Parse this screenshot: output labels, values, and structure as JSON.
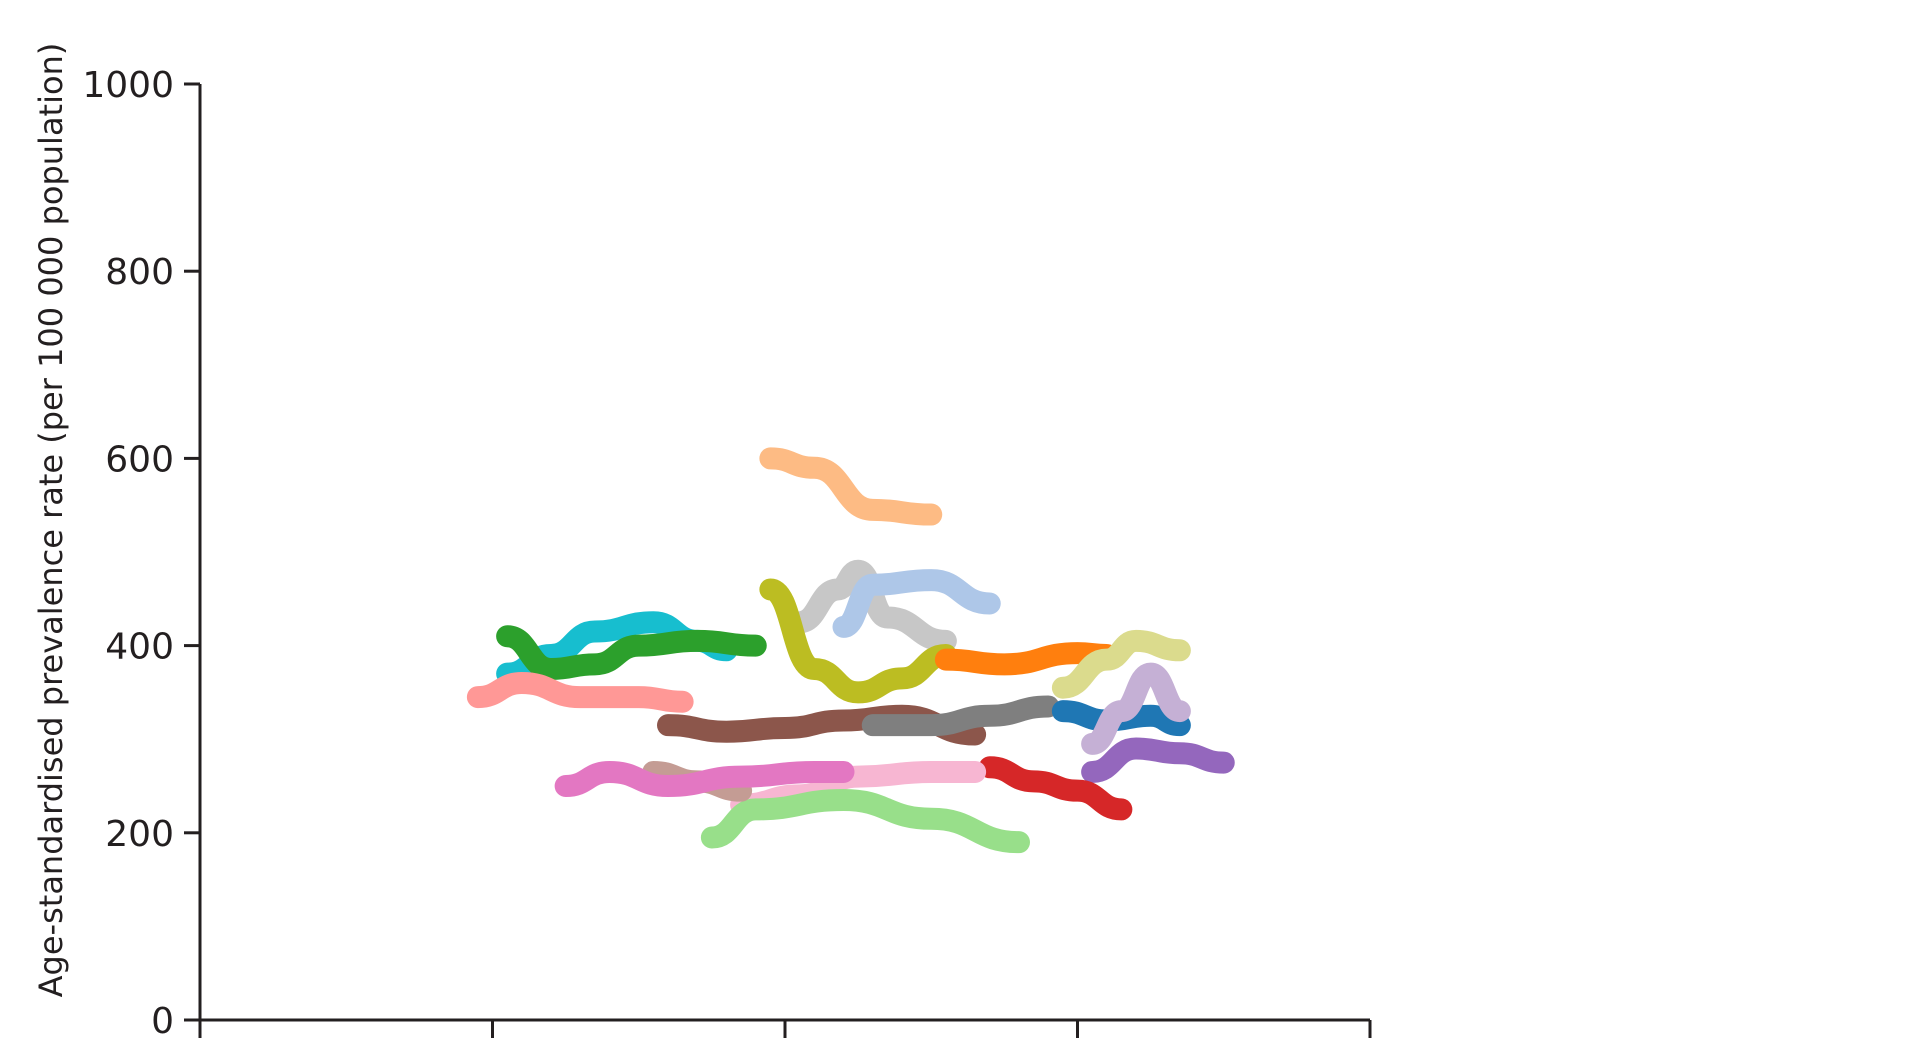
{
  "chart_data": {
    "type": "line",
    "title": "",
    "xlabel": "",
    "ylabel": "Age-standardised prevalence rate (per 100 000 population)",
    "ylim": [
      0,
      1000
    ],
    "yticks": [
      0,
      200,
      400,
      600,
      800,
      1000
    ],
    "ytick_labels": [
      "0",
      "200",
      "400",
      "600",
      "800",
      "1000"
    ],
    "xlim": [
      0,
      4
    ],
    "xticks": [
      0,
      1,
      2,
      3,
      4
    ],
    "grid": false,
    "legend": "none",
    "series": [
      {
        "color": "#fdbb84",
        "x": [
          1.95,
          2.1,
          2.3,
          2.5
        ],
        "y": [
          600,
          590,
          545,
          540
        ]
      },
      {
        "color": "#c7c7c7",
        "x": [
          2.05,
          2.18,
          2.25,
          2.35,
          2.55
        ],
        "y": [
          425,
          460,
          480,
          430,
          405
        ]
      },
      {
        "color": "#aec7e8",
        "x": [
          2.2,
          2.3,
          2.5,
          2.7
        ],
        "y": [
          420,
          465,
          470,
          445
        ]
      },
      {
        "color": "#bcbd22",
        "x": [
          1.95,
          2.1,
          2.25,
          2.4,
          2.55
        ],
        "y": [
          460,
          375,
          350,
          365,
          390
        ]
      },
      {
        "color": "#ff7f0e",
        "x": [
          2.55,
          2.75,
          3.0,
          3.1
        ],
        "y": [
          385,
          380,
          392,
          390
        ]
      },
      {
        "color": "#dbdb8d",
        "x": [
          2.95,
          3.1,
          3.2,
          3.35
        ],
        "y": [
          355,
          385,
          405,
          395
        ]
      },
      {
        "color": "#17becf",
        "x": [
          1.05,
          1.2,
          1.35,
          1.55,
          1.7,
          1.8
        ],
        "y": [
          370,
          390,
          415,
          425,
          405,
          395
        ]
      },
      {
        "color": "#2ca02c",
        "x": [
          1.05,
          1.2,
          1.35,
          1.5,
          1.7,
          1.9
        ],
        "y": [
          410,
          375,
          380,
          400,
          405,
          400
        ]
      },
      {
        "color": "#ff9896",
        "x": [
          0.95,
          1.1,
          1.3,
          1.5,
          1.65
        ],
        "y": [
          345,
          360,
          345,
          345,
          340
        ]
      },
      {
        "color": "#8c564b",
        "x": [
          1.6,
          1.8,
          2.0,
          2.2,
          2.4,
          2.65
        ],
        "y": [
          315,
          308,
          312,
          320,
          325,
          305
        ]
      },
      {
        "color": "#7f7f7f",
        "x": [
          2.3,
          2.5,
          2.7,
          2.9
        ],
        "y": [
          315,
          315,
          325,
          335
        ]
      },
      {
        "color": "#1f77b4",
        "x": [
          2.95,
          3.1,
          3.25,
          3.35
        ],
        "y": [
          330,
          320,
          325,
          315
        ]
      },
      {
        "color": "#c5b0d5",
        "x": [
          3.05,
          3.15,
          3.25,
          3.35
        ],
        "y": [
          295,
          330,
          370,
          330
        ]
      },
      {
        "color": "#9467bd",
        "x": [
          3.05,
          3.2,
          3.35,
          3.5
        ],
        "y": [
          265,
          290,
          285,
          275
        ]
      },
      {
        "color": "#d62728",
        "x": [
          2.7,
          2.85,
          3.0,
          3.15
        ],
        "y": [
          270,
          255,
          245,
          225
        ]
      },
      {
        "color": "#f7b6d2",
        "x": [
          1.85,
          2.05,
          2.25,
          2.5,
          2.65
        ],
        "y": [
          230,
          240,
          260,
          265,
          265
        ]
      },
      {
        "color": "#98df8a",
        "x": [
          1.75,
          1.9,
          2.2,
          2.5,
          2.8
        ],
        "y": [
          195,
          225,
          235,
          215,
          190
        ]
      },
      {
        "color": "#c49c94",
        "x": [
          1.55,
          1.7,
          1.85
        ],
        "y": [
          265,
          255,
          245
        ]
      },
      {
        "color": "#e377c2",
        "x": [
          1.25,
          1.4,
          1.6,
          1.85,
          2.1,
          2.2
        ],
        "y": [
          250,
          265,
          250,
          260,
          265,
          265
        ]
      }
    ]
  }
}
